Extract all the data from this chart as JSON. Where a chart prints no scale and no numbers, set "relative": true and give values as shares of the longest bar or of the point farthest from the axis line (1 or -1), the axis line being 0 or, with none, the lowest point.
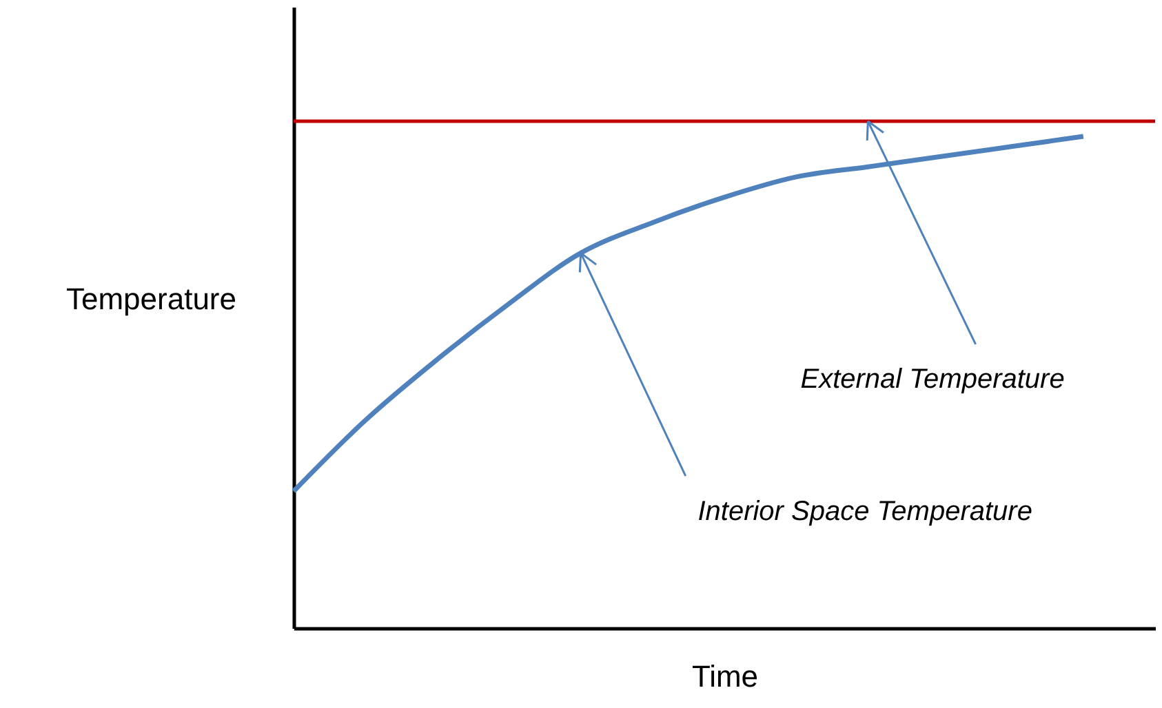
{
  "chart_data": {
    "type": "line",
    "relative": true,
    "xlabel": "Time",
    "ylabel": "Temperature",
    "categories": [
      null,
      null,
      null,
      null,
      null,
      null,
      null,
      null,
      null,
      null,
      null,
      null,
      null
    ],
    "series": [
      {
        "color": "#4f81bd",
        "values": [
          0.27,
          0.41,
          0.53,
          0.64,
          0.74,
          0.8,
          0.85,
          0.89,
          0.91,
          0.93,
          0.95,
          0.97,
          null
        ]
      },
      {
        "color": "#c00000",
        "values": [
          1,
          1,
          1,
          1,
          1,
          1,
          1,
          1,
          1,
          1,
          1,
          1,
          1
        ]
      }
    ],
    "annotations": [
      "External Temperature",
      "Interior Space Temperature"
    ],
    "grid": false,
    "marker": "none",
    "line_style": "solid"
  }
}
